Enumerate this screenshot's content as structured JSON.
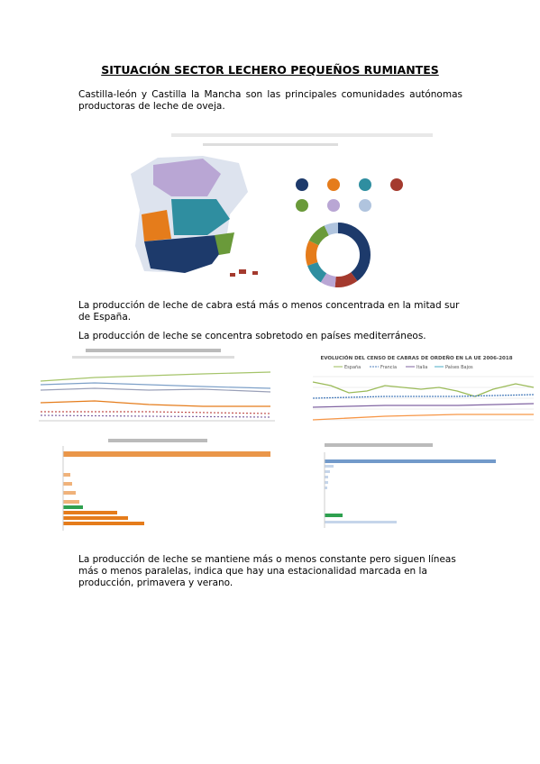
{
  "title": "SITUACIÓN SECTOR LECHERO PEQUEÑOS RUMIANTES",
  "paragraphs": [
    "Castilla-león y Castilla la Mancha son las principales comunidades autónomas productoras de leche de oveja.",
    "La producción de leche de cabra está más o menos concentrada en la mitad sur de España.",
    "La producción de leche se concentra sobretodo en países mediterráneos.",
    "La producción de leche se mantiene más o menos constante pero siguen líneas más o menos paralelas, indica que hay una estacionalidad marcada en la producción, primavera y verano."
  ],
  "figures": {
    "goat_evolution": {
      "title": "EVOLUCIÓN DEL CENSO DE CABRAS DE ORDEÑO EN LA UE 2006-2018",
      "legend": [
        "España",
        "Francia",
        "Italia",
        "Países Bajos"
      ]
    }
  }
}
